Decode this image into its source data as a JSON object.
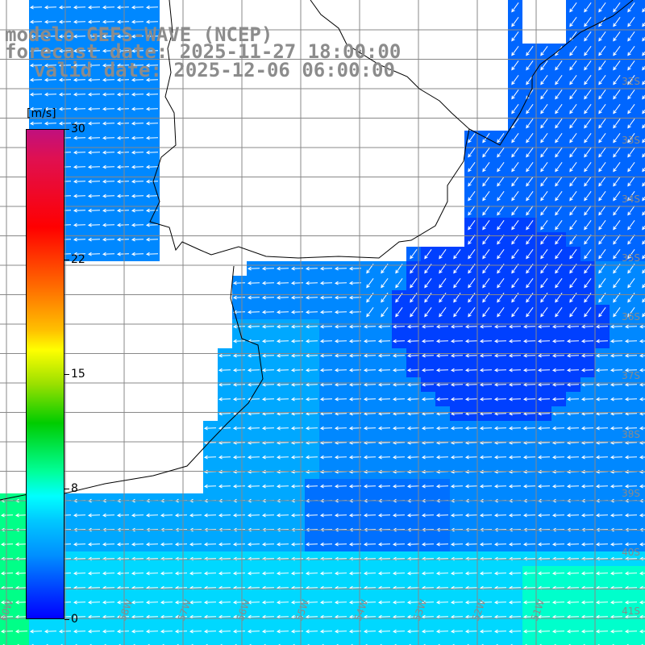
{
  "title": {
    "model": "modelo GEFS-WAVE (NCEP)",
    "forecast": "forecast date: 2025-11-27 18:00:00",
    "valid": "valid date: 2025-12-06 06:00:00"
  },
  "colorbar": {
    "unit": "[m/s]",
    "min": 0,
    "max": 30,
    "labels": [
      "30",
      "22",
      "15",
      "8",
      "0"
    ],
    "label_values": [
      30,
      22,
      15,
      8,
      0
    ]
  },
  "map": {
    "lat_labels": [
      "32S",
      "33S",
      "34S",
      "35S",
      "36S",
      "37S",
      "38S",
      "39S",
      "40S",
      "41S"
    ],
    "lon_labels": [
      "60W",
      "58W",
      "57W",
      "56W",
      "55W",
      "54W",
      "53W",
      "52W",
      "51W"
    ],
    "colors": {
      "ocean_background": "#ffffff",
      "grid": "#888888",
      "coast": "#000000",
      "arrow": "#ffffff"
    }
  }
}
